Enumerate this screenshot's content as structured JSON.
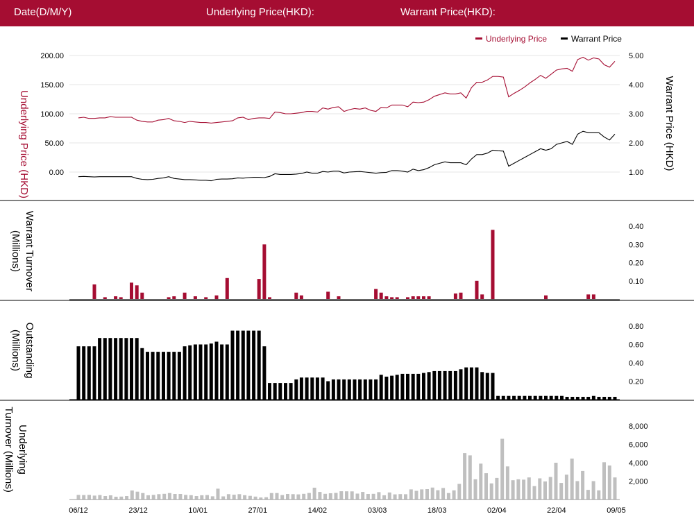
{
  "header": {
    "date_label": "Date(D/M/Y)",
    "underlying_label": "Underlying Price(HKD):",
    "warrant_label": "Warrant Price(HKD):"
  },
  "colors": {
    "header_bg": "#a50d32",
    "underlying": "#a50d32",
    "warrant": "#000000",
    "gray": "#bfbfbf"
  },
  "chart_data": [
    {
      "type": "line",
      "legend": [
        "Underlying Price",
        "Warrant Price"
      ],
      "legend_position": "top-right",
      "ylabel_left": "Underlying Price (HKD)",
      "ylabel_right": "Warrant  Price (HKD)",
      "left_ticks": [
        "200.00",
        "150.00",
        "100.00",
        "50.00",
        "0.00"
      ],
      "right_ticks": [
        "5.00",
        "4.00",
        "3.00",
        "2.00",
        "1.00"
      ],
      "ylim_left": [
        0,
        200
      ],
      "ylim_right": [
        1,
        5
      ],
      "grid": true,
      "series": [
        {
          "name": "Underlying Price",
          "axis": "left",
          "values": [
            93,
            94,
            92,
            92,
            93,
            93,
            95,
            94,
            94,
            94,
            94,
            89,
            87,
            86,
            86,
            89,
            90,
            92,
            88,
            87,
            85,
            87,
            86,
            85,
            85,
            84,
            85,
            86,
            87,
            88,
            93,
            94,
            90,
            92,
            93,
            93,
            92,
            103,
            102,
            100,
            100,
            101,
            102,
            104,
            104,
            103,
            110,
            108,
            111,
            112,
            104,
            107,
            109,
            108,
            110,
            106,
            104,
            111,
            110,
            115,
            115,
            115,
            112,
            120,
            119,
            120,
            124,
            130,
            133,
            136,
            134,
            134,
            136,
            127,
            145,
            154,
            154,
            158,
            164,
            164,
            163,
            129,
            135,
            140,
            146,
            153,
            159,
            166,
            161,
            168,
            175,
            177,
            178,
            173,
            193,
            197,
            192,
            196,
            194,
            184,
            180,
            190
          ]
        },
        {
          "name": "Warrant Price",
          "axis": "right",
          "values": [
            0.84,
            0.85,
            0.84,
            0.83,
            0.84,
            0.84,
            0.84,
            0.84,
            0.84,
            0.84,
            0.84,
            0.78,
            0.75,
            0.74,
            0.75,
            0.78,
            0.8,
            0.84,
            0.78,
            0.76,
            0.74,
            0.74,
            0.73,
            0.72,
            0.72,
            0.7,
            0.75,
            0.76,
            0.76,
            0.77,
            0.8,
            0.79,
            0.81,
            0.82,
            0.82,
            0.81,
            0.85,
            0.94,
            0.92,
            0.92,
            0.92,
            0.93,
            0.95,
            1.0,
            0.96,
            0.96,
            1.02,
            1.0,
            1.03,
            1.03,
            0.97,
            1.0,
            1.01,
            1.02,
            1.0,
            0.98,
            0.96,
            0.98,
            0.99,
            1.05,
            1.05,
            1.03,
            1.0,
            1.1,
            1.05,
            1.08,
            1.15,
            1.25,
            1.3,
            1.35,
            1.32,
            1.32,
            1.32,
            1.25,
            1.45,
            1.6,
            1.6,
            1.65,
            1.75,
            1.73,
            1.72,
            1.2,
            1.3,
            1.4,
            1.5,
            1.6,
            1.7,
            1.8,
            1.75,
            1.8,
            1.95,
            2.0,
            2.05,
            1.95,
            2.3,
            2.4,
            2.35,
            2.35,
            2.35,
            2.2,
            2.1,
            2.3
          ]
        }
      ]
    },
    {
      "type": "bar",
      "ylabel": "Warrant  Turnover (Millions)",
      "ticks": [
        "0.40",
        "0.30",
        "0.20",
        "0.10"
      ],
      "ylim": [
        0,
        0.4
      ],
      "values": [
        0,
        0,
        0,
        0.08,
        0,
        0.01,
        0,
        0.015,
        0.01,
        0,
        0.09,
        0.075,
        0.035,
        0,
        0,
        0,
        0,
        0.01,
        0.015,
        0,
        0.035,
        0,
        0.015,
        0,
        0.01,
        0,
        0.02,
        0,
        0.115,
        0,
        0,
        0,
        0,
        0,
        0.11,
        0.3,
        0.01,
        0,
        0,
        0,
        0,
        0.035,
        0.02,
        0,
        0,
        0,
        0,
        0.04,
        0,
        0.015,
        0,
        0,
        0,
        0,
        0,
        0,
        0.055,
        0.035,
        0.015,
        0.01,
        0.01,
        0,
        0.01,
        0.015,
        0.015,
        0.015,
        0.015,
        0,
        0,
        0,
        0,
        0.03,
        0.035,
        0,
        0,
        0.1,
        0.025,
        0,
        0.38,
        0,
        0,
        0,
        0,
        0,
        0,
        0,
        0,
        0,
        0.02,
        0,
        0,
        0,
        0,
        0,
        0,
        0,
        0.025,
        0.025,
        0,
        0,
        0,
        0
      ]
    },
    {
      "type": "bar",
      "ylabel": "Outstanding (Millions)",
      "ticks": [
        "0.80",
        "0.60",
        "0.40",
        "0.20"
      ],
      "ylim": [
        0,
        0.8
      ],
      "values": [
        0.58,
        0.58,
        0.58,
        0.58,
        0.67,
        0.67,
        0.67,
        0.67,
        0.67,
        0.67,
        0.67,
        0.67,
        0.56,
        0.52,
        0.52,
        0.52,
        0.52,
        0.52,
        0.52,
        0.52,
        0.58,
        0.59,
        0.6,
        0.6,
        0.6,
        0.61,
        0.63,
        0.6,
        0.6,
        0.75,
        0.75,
        0.75,
        0.75,
        0.75,
        0.75,
        0.58,
        0.18,
        0.18,
        0.18,
        0.18,
        0.18,
        0.22,
        0.24,
        0.24,
        0.24,
        0.24,
        0.24,
        0.2,
        0.22,
        0.22,
        0.22,
        0.22,
        0.22,
        0.22,
        0.22,
        0.22,
        0.22,
        0.27,
        0.25,
        0.26,
        0.27,
        0.28,
        0.28,
        0.28,
        0.28,
        0.29,
        0.3,
        0.31,
        0.31,
        0.31,
        0.31,
        0.31,
        0.33,
        0.35,
        0.35,
        0.35,
        0.3,
        0.29,
        0.29,
        0.04,
        0.04,
        0.04,
        0.04,
        0.04,
        0.04,
        0.04,
        0.04,
        0.04,
        0.04,
        0.04,
        0.04,
        0.04,
        0.03,
        0.03,
        0.03,
        0.03,
        0.03,
        0.04,
        0.03,
        0.03,
        0.03,
        0.03
      ]
    },
    {
      "type": "bar",
      "ylabel": "Underlying Turnover (Millions)",
      "ticks": [
        "8,000",
        "6,000",
        "4,000",
        "2,000"
      ],
      "ylim": [
        0,
        8000
      ],
      "x_ticks": [
        "06/12",
        "23/12",
        "10/01",
        "27/01",
        "14/02",
        "03/03",
        "18/03",
        "02/04",
        "22/04",
        "09/05"
      ],
      "values": [
        500,
        480,
        500,
        420,
        480,
        380,
        450,
        300,
        320,
        380,
        980,
        850,
        700,
        460,
        500,
        580,
        620,
        700,
        600,
        600,
        500,
        470,
        380,
        460,
        480,
        350,
        1180,
        340,
        580,
        520,
        580,
        470,
        400,
        320,
        220,
        250,
        700,
        700,
        480,
        600,
        580,
        560,
        620,
        710,
        1280,
        820,
        620,
        680,
        720,
        900,
        890,
        880,
        640,
        820,
        600,
        620,
        800,
        460,
        760,
        560,
        590,
        570,
        1100,
        940,
        1100,
        1130,
        1300,
        1010,
        1250,
        700,
        1000,
        1700,
        5050,
        4800,
        2200,
        3900,
        2860,
        1750,
        2350,
        6600,
        3600,
        2100,
        2200,
        2160,
        2400,
        1460,
        2300,
        1960,
        2450,
        4000,
        1800,
        2700,
        4450,
        2000,
        3100,
        1050,
        2000,
        1000,
        4050,
        3700,
        2400
      ]
    }
  ]
}
